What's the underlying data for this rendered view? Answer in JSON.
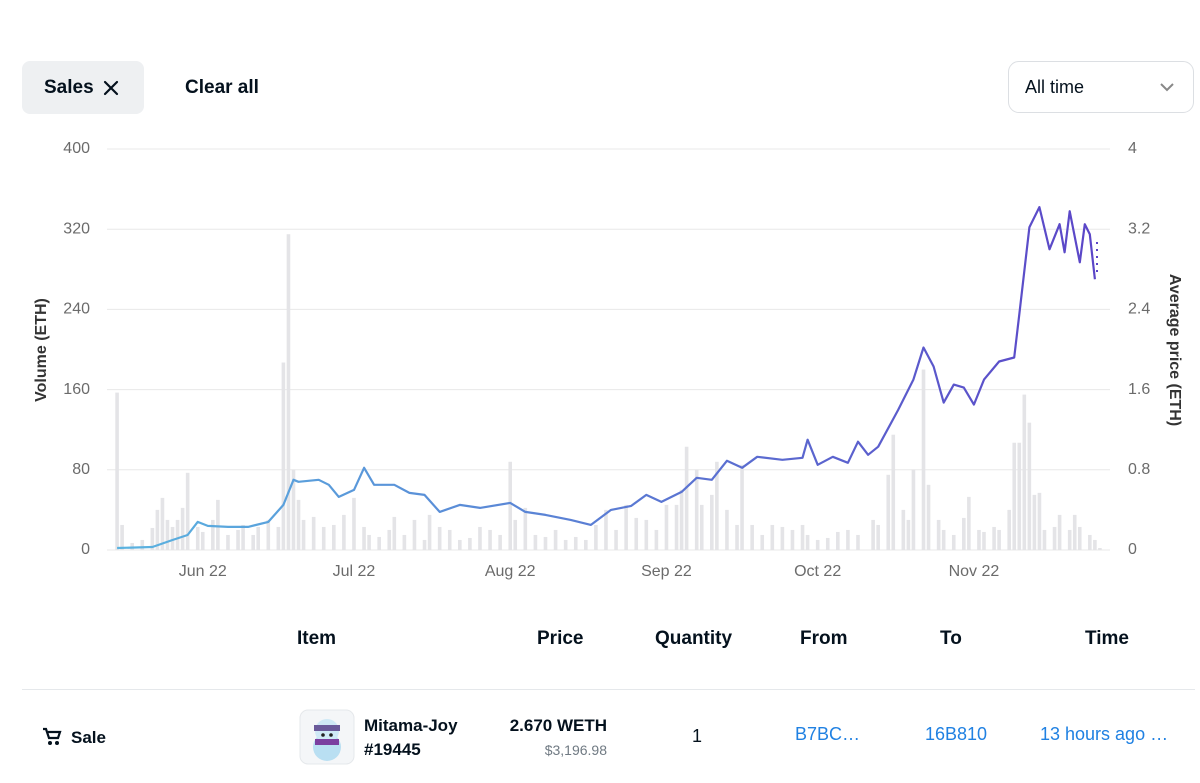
{
  "filters": {
    "chip": "Sales",
    "clear": "Clear all",
    "range": "All time"
  },
  "chart_data": {
    "type": "combo",
    "y_label": "Volume (ETH)",
    "y2_label": "Average price (ETH)",
    "xlim": [
      133,
      332
    ],
    "xticks": [
      {
        "value": 152,
        "label": "Jun 22"
      },
      {
        "value": 182,
        "label": "Jul 22"
      },
      {
        "value": 213,
        "label": "Aug 22"
      },
      {
        "value": 244,
        "label": "Sep 22"
      },
      {
        "value": 274,
        "label": "Oct 22"
      },
      {
        "value": 305,
        "label": "Nov 22"
      }
    ],
    "ylim": [
      0,
      400
    ],
    "yticks": [
      0,
      80,
      160,
      240,
      320,
      400
    ],
    "y2lim": [
      0,
      4
    ],
    "y2ticks": [
      0,
      0.8,
      1.6,
      2.4,
      3.2,
      4
    ],
    "grid": true,
    "series": [
      {
        "type": "bar",
        "axis": "y",
        "color": "#e4e4e7",
        "x": [
          135,
          136,
          138,
          140,
          142,
          143,
          144,
          145,
          146,
          147,
          148,
          149,
          151,
          152,
          154,
          155,
          157,
          159,
          160,
          162,
          163,
          165,
          167,
          168,
          169,
          170,
          171,
          172,
          174,
          176,
          178,
          180,
          182,
          184,
          185,
          187,
          189,
          190,
          192,
          194,
          196,
          197,
          199,
          201,
          203,
          205,
          207,
          209,
          211,
          213,
          214,
          216,
          218,
          220,
          222,
          224,
          226,
          228,
          230,
          232,
          234,
          236,
          238,
          240,
          242,
          244,
          246,
          247,
          248,
          250,
          251,
          253,
          254,
          256,
          258,
          259,
          261,
          263,
          265,
          267,
          269,
          271,
          272,
          274,
          276,
          278,
          280,
          282,
          285,
          286,
          288,
          289,
          291,
          292,
          293,
          295,
          296,
          298,
          299,
          301,
          303,
          304,
          306,
          307,
          309,
          310,
          312,
          313,
          314,
          315,
          316,
          317,
          318,
          319,
          321,
          322,
          324,
          325,
          326,
          328,
          329,
          330
        ],
        "values": [
          157,
          25,
          7,
          10,
          22,
          40,
          52,
          30,
          23,
          30,
          42,
          77,
          23,
          18,
          30,
          50,
          15,
          20,
          25,
          15,
          23,
          30,
          23,
          187,
          315,
          80,
          50,
          30,
          33,
          23,
          25,
          35,
          52,
          23,
          15,
          13,
          20,
          33,
          15,
          30,
          10,
          35,
          23,
          20,
          10,
          12,
          23,
          20,
          15,
          88,
          30,
          42,
          15,
          13,
          20,
          10,
          13,
          10,
          25,
          40,
          20,
          45,
          32,
          30,
          20,
          45,
          45,
          60,
          103,
          80,
          45,
          55,
          88,
          40,
          25,
          85,
          25,
          15,
          25,
          23,
          20,
          25,
          15,
          10,
          12,
          18,
          20,
          15,
          30,
          25,
          75,
          115,
          40,
          30,
          80,
          180,
          65,
          30,
          20,
          15,
          32,
          53,
          20,
          18,
          23,
          20,
          40,
          107,
          107,
          155,
          127,
          55,
          57,
          20,
          23,
          35,
          20,
          35,
          23,
          15,
          10,
          2
        ]
      },
      {
        "type": "line",
        "axis": "y2",
        "color": "#5ab4e0",
        "color_end": "#5b44c7",
        "x": [
          135,
          142,
          146,
          149,
          151,
          153,
          157,
          161,
          165,
          168,
          170,
          171,
          175,
          177,
          179,
          182,
          184,
          186,
          190,
          193,
          196,
          199,
          203,
          207,
          213,
          216,
          220,
          225,
          229,
          233,
          237,
          240,
          243,
          247,
          250,
          253,
          256,
          259,
          262,
          267,
          271,
          272,
          274,
          277,
          280,
          282,
          284,
          286,
          290,
          293,
          295,
          297,
          299,
          301,
          303,
          305,
          307,
          310,
          313,
          314,
          316,
          318,
          320,
          322,
          323,
          324,
          326,
          327,
          328,
          329
        ],
        "values": [
          0.02,
          0.03,
          0.1,
          0.15,
          0.28,
          0.24,
          0.23,
          0.23,
          0.28,
          0.45,
          0.7,
          0.68,
          0.7,
          0.65,
          0.53,
          0.6,
          0.82,
          0.65,
          0.65,
          0.57,
          0.55,
          0.38,
          0.45,
          0.42,
          0.47,
          0.38,
          0.35,
          0.3,
          0.25,
          0.4,
          0.44,
          0.55,
          0.48,
          0.58,
          0.72,
          0.7,
          0.89,
          0.82,
          0.93,
          0.9,
          0.92,
          1.1,
          0.85,
          0.93,
          0.87,
          1.08,
          0.95,
          1.03,
          1.4,
          1.7,
          2.02,
          1.83,
          1.47,
          1.65,
          1.62,
          1.45,
          1.7,
          1.88,
          1.92,
          2.35,
          3.22,
          3.42,
          3.0,
          3.25,
          2.97,
          3.38,
          2.87,
          3.25,
          3.15,
          2.7
        ]
      }
    ]
  },
  "table": {
    "columns": [
      "Item",
      "Price",
      "Quantity",
      "From",
      "To",
      "Time"
    ],
    "rows": [
      {
        "event": "Sale",
        "item": "Mitama-Joy #19445",
        "price": "2.670 WETH",
        "price_usd": "$3,196.98",
        "quantity": 1,
        "from": "B7BC…",
        "to": "16B810",
        "time": "13 hours ago …"
      }
    ]
  }
}
